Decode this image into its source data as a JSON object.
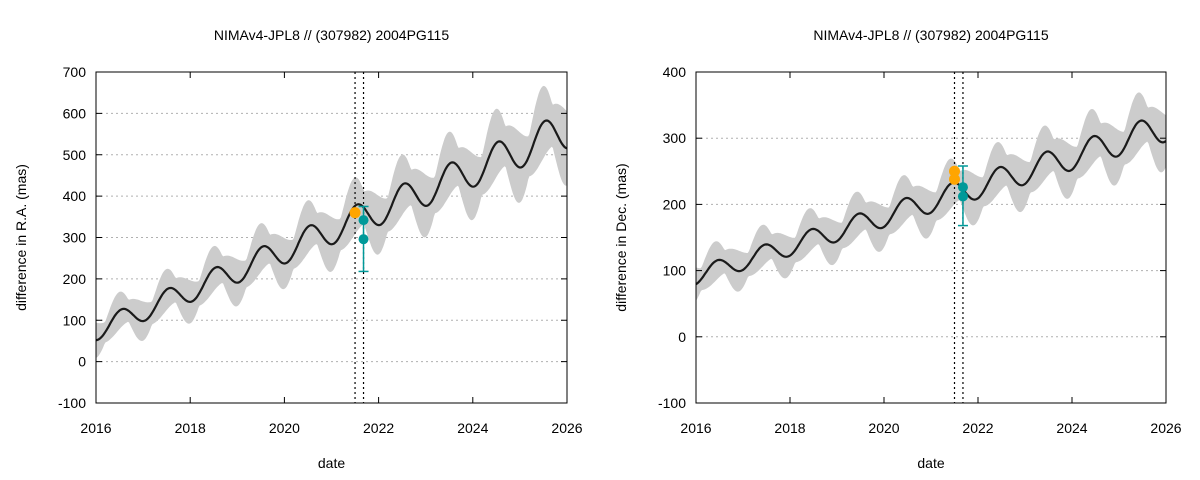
{
  "colors": {
    "model_line": "#1a1a1a",
    "uncertainty_band": "#cccccc",
    "obs_orange": "#ffa500",
    "obs_teal": "#009999",
    "grid": "#b0b0b0",
    "frame": "#000000"
  },
  "chart_data": [
    {
      "type": "line",
      "title": "NIMAv4-JPL8 // (307982) 2004PG115",
      "xlabel": "date",
      "ylabel": "difference in R.A. (mas)",
      "xlim": [
        2016,
        2026
      ],
      "ylim": [
        -100,
        700
      ],
      "xticks": [
        "2016",
        "2018",
        "2020",
        "2022",
        "2024",
        "2026"
      ],
      "yticks": [
        "-100",
        "0",
        "100",
        "200",
        "300",
        "400",
        "500",
        "600",
        "700"
      ],
      "grid": "horizontal dotted",
      "model": {
        "base_start": 75,
        "base_slope": 48.5,
        "amplitude": 24,
        "amp_growth": 0.9,
        "phase": -1.8,
        "band_start": 44,
        "band_slope": 0.5
      },
      "vlines": [
        2021.5,
        2021.68
      ],
      "obs_orange": [
        {
          "x": 2021.5,
          "y": 360
        }
      ],
      "obs_teal": [
        {
          "x": 2021.68,
          "y": 342,
          "err": 0
        },
        {
          "x": 2021.68,
          "y": 296,
          "err": 0
        },
        {
          "x": 2021.68,
          "y": 296,
          "err_low": 218,
          "err_high": 375
        }
      ]
    },
    {
      "type": "line",
      "title": "NIMAv4-JPL8 // (307982) 2004PG115",
      "xlabel": "date",
      "ylabel": "difference in Dec. (mas)",
      "xlim": [
        2016,
        2026
      ],
      "ylim": [
        -100,
        400
      ],
      "xticks": [
        "2016",
        "2018",
        "2020",
        "2022",
        "2024",
        "2026"
      ],
      "yticks": [
        "-100",
        "0",
        "100",
        "200",
        "300",
        "400"
      ],
      "grid": "horizontal dotted",
      "model": {
        "base_start": 92,
        "base_slope": 22.5,
        "amplitude": 13,
        "amp_growth": 0.7,
        "phase": -1.3,
        "band_start": 30,
        "band_slope": 0.25
      },
      "vlines": [
        2021.5,
        2021.68
      ],
      "obs_orange": [
        {
          "x": 2021.5,
          "y": 250
        },
        {
          "x": 2021.5,
          "y": 238
        }
      ],
      "obs_teal": [
        {
          "x": 2021.68,
          "y": 226,
          "err": 0
        },
        {
          "x": 2021.68,
          "y": 212,
          "err": 0
        },
        {
          "x": 2021.68,
          "y": 212,
          "err_low": 168,
          "err_high": 258
        }
      ]
    }
  ]
}
